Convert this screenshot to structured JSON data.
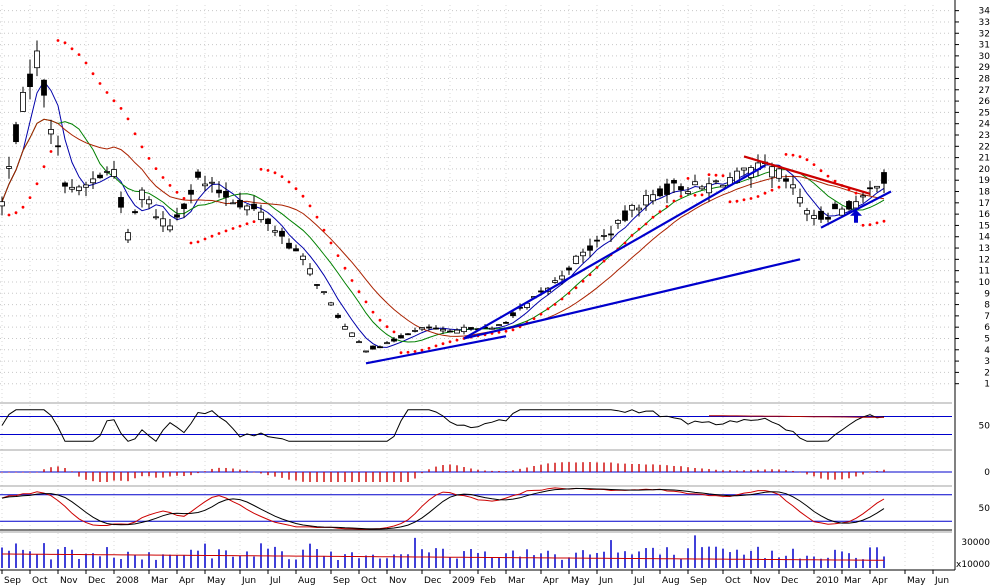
{
  "chart_data": {
    "type": "candlestick",
    "price_axis": {
      "ticks": [
        "1",
        "2",
        "3",
        "4",
        "5",
        "6",
        "7",
        "8",
        "9",
        "10",
        "11",
        "12",
        "13",
        "14",
        "15",
        "16",
        "17",
        "18",
        "19",
        "20",
        "21",
        "22",
        "23",
        "24",
        "25",
        "26",
        "27",
        "28",
        "29",
        "30",
        "31",
        "32",
        "33",
        "34"
      ],
      "range": [
        0,
        34.5
      ]
    },
    "months": [
      "Sep",
      "Oct",
      "Nov",
      "Dec",
      "2008",
      "Mar",
      "Apr",
      "May",
      "Jun",
      "Jul",
      "Aug",
      "Sep",
      "Oct",
      "Nov",
      "Dec",
      "2009",
      "Feb",
      "Mar",
      "Apr",
      "May",
      "Jun",
      "Jul",
      "Aug",
      "Sep",
      "Oct",
      "Nov",
      "Dec",
      "2010",
      "Mar",
      "Apr",
      "May",
      "Jun"
    ],
    "month_index": [
      0,
      4,
      8,
      12,
      16,
      21,
      25,
      29,
      34,
      38,
      42,
      47,
      51,
      55,
      60,
      64,
      68,
      72,
      77,
      81,
      85,
      90,
      94,
      98,
      103,
      107,
      111,
      116,
      120,
      124,
      129,
      133
    ],
    "close_keypoints": [
      [
        0,
        17
      ],
      [
        3,
        26
      ],
      [
        5,
        30
      ],
      [
        7,
        24
      ],
      [
        9,
        19
      ],
      [
        11,
        18
      ],
      [
        13,
        19
      ],
      [
        16,
        20
      ],
      [
        18,
        14
      ],
      [
        20,
        18
      ],
      [
        22,
        16
      ],
      [
        24,
        15
      ],
      [
        26,
        17
      ],
      [
        28,
        19
      ],
      [
        31,
        18
      ],
      [
        34,
        17
      ],
      [
        37,
        16
      ],
      [
        40,
        14
      ],
      [
        43,
        12
      ],
      [
        46,
        9
      ],
      [
        49,
        6
      ],
      [
        52,
        4
      ],
      [
        55,
        4.5
      ],
      [
        58,
        5.5
      ],
      [
        61,
        6
      ],
      [
        64,
        5.5
      ],
      [
        67,
        6
      ],
      [
        70,
        5.8
      ],
      [
        73,
        7
      ],
      [
        76,
        8.5
      ],
      [
        79,
        10
      ],
      [
        82,
        12
      ],
      [
        85,
        13.5
      ],
      [
        88,
        15
      ],
      [
        91,
        17
      ],
      [
        94,
        18
      ],
      [
        97,
        18.5
      ],
      [
        100,
        18.3
      ],
      [
        103,
        19
      ],
      [
        106,
        19.5
      ],
      [
        109,
        20.2
      ],
      [
        111,
        19.5
      ],
      [
        114,
        17.5
      ],
      [
        116,
        15.5
      ],
      [
        119,
        16.3
      ],
      [
        121,
        16.8
      ],
      [
        123,
        17.2
      ],
      [
        125,
        19
      ],
      [
        126,
        19
      ]
    ],
    "trendlines": [
      {
        "color": "#0000cc",
        "from": [
          52,
          2.8
        ],
        "to": [
          72,
          5.2
        ]
      },
      {
        "color": "#0000cc",
        "from": [
          66,
          5.0
        ],
        "to": [
          109,
          20.3
        ]
      },
      {
        "color": "#0000cc",
        "from": [
          66,
          5.0
        ],
        "to": [
          114,
          12.0
        ]
      },
      {
        "color": "#0000cc",
        "from": [
          117,
          14.8
        ],
        "to": [
          127,
          18.0
        ]
      },
      {
        "color": "#cc0000",
        "from": [
          106,
          21.1
        ],
        "to": [
          124,
          17.8
        ]
      }
    ],
    "breakout_arrow": {
      "color": "#0000cc",
      "at": [
        122,
        15.5
      ]
    },
    "indicators": [
      {
        "name": "rsi",
        "ticks": [
          "50"
        ],
        "levels": [
          70,
          30
        ]
      },
      {
        "name": "macd_histogram",
        "ticks": [
          "0"
        ]
      },
      {
        "name": "stochastic",
        "ticks": [
          "50"
        ],
        "levels": [
          80,
          20
        ]
      },
      {
        "name": "volume",
        "ticks": [
          "30000"
        ],
        "scale_label": "x10000"
      }
    ],
    "colors": {
      "candle_up": "#ffffff",
      "candle_down": "#000000",
      "ma_fast": "#0000aa",
      "ma_mid": "#008000",
      "ma_slow": "#aa2200",
      "sar": "#ff0000",
      "trendline": "#0000cc",
      "resistance": "#cc0000",
      "volume": "#0000cc"
    }
  }
}
